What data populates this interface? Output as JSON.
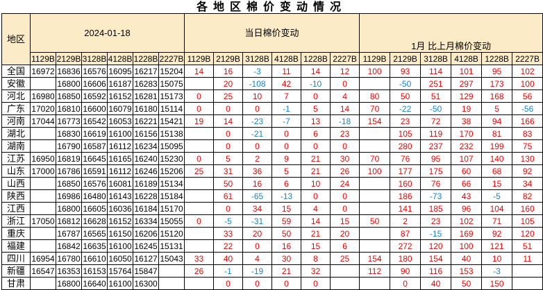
{
  "title": "各地区棉价变动情况",
  "colors": {
    "header_bg": "#fbebc6",
    "positive": "#f40000",
    "negative": "#1a7fd0",
    "border": "#000000"
  },
  "table": {
    "region_header": "地区",
    "groups": [
      {
        "label": "2024-01-18",
        "cols": [
          "1129B",
          "2129B",
          "3128B",
          "4128B",
          "1228B",
          "2227B"
        ]
      },
      {
        "label": "当日棉价变动",
        "cols": [
          "1129B",
          "2129B",
          "3128B",
          "4128B",
          "1228B",
          "2227B"
        ]
      },
      {
        "label": "1月 比上月棉价变动",
        "cols": [
          "1129B",
          "2129B",
          "3128B",
          "4128B",
          "1228B",
          "2227B"
        ]
      }
    ],
    "rows": [
      {
        "region": "全国",
        "prices": [
          "16972",
          "16836",
          "16576",
          "16095",
          "16217",
          "15204"
        ],
        "daily": [
          "14",
          "16",
          "-3",
          "11",
          "14",
          "12"
        ],
        "monthly": [
          "100",
          "93",
          "114",
          "101",
          "95",
          "102"
        ]
      },
      {
        "region": "安徽",
        "prices": [
          "",
          "16800",
          "16606",
          "16187",
          "16283",
          "15075"
        ],
        "daily": [
          "",
          "20",
          "-108",
          "42",
          "-10",
          "0"
        ],
        "monthly": [
          "",
          "-50",
          "251",
          "297",
          "173",
          "100"
        ]
      },
      {
        "region": "河北",
        "prices": [
          "16980",
          "16850",
          "16592",
          "16152",
          "16281",
          "15173"
        ],
        "daily": [
          "0",
          "25",
          "10",
          "7",
          "0",
          "4"
        ],
        "monthly": [
          "80",
          "50",
          "51",
          "129",
          "168",
          "56"
        ]
      },
      {
        "region": "广东",
        "prices": [
          "17020",
          "16810",
          "16600",
          "16079",
          "16180",
          "15114"
        ],
        "daily": [
          "0",
          "0",
          "0",
          "-1",
          "5",
          "14"
        ],
        "monthly": [
          "70",
          "-22",
          "-50",
          "19",
          "5",
          "-56"
        ]
      },
      {
        "region": "河南",
        "prices": [
          "17044",
          "16773",
          "16542",
          "16053",
          "16221",
          "15421"
        ],
        "daily": [
          "19",
          "14",
          "-23",
          "-7",
          "13",
          "-18"
        ],
        "monthly": [
          "154",
          "23",
          "72",
          "38",
          "94",
          "166"
        ]
      },
      {
        "region": "湖北",
        "prices": [
          "",
          "16830",
          "16619",
          "16100",
          "16156",
          "15138"
        ],
        "daily": [
          "",
          "0",
          "-21",
          "0",
          "6",
          "23"
        ],
        "monthly": [
          "",
          "105",
          "119",
          "170",
          "81",
          "83"
        ]
      },
      {
        "region": "湖南",
        "prices": [
          "",
          "16790",
          "16587",
          "16112",
          "16234",
          "15095"
        ],
        "daily": [
          "",
          "0",
          "0",
          "0",
          "0",
          "0"
        ],
        "monthly": [
          "",
          "280",
          "237",
          "232",
          "199",
          "75"
        ]
      },
      {
        "region": "江苏",
        "prices": [
          "16950",
          "16819",
          "16645",
          "16165",
          "16240",
          "15230"
        ],
        "daily": [
          "0",
          "5",
          "2",
          "9",
          "21",
          "30"
        ],
        "monthly": [
          "70",
          "76",
          "95",
          "107",
          "140",
          "130"
        ]
      },
      {
        "region": "山东",
        "prices": [
          "17000",
          "16786",
          "16591",
          "16112",
          "16246",
          "15206"
        ],
        "daily": [
          "25",
          "31",
          "36",
          "5",
          "21",
          "26"
        ],
        "monthly": [
          "100",
          "177",
          "175",
          "60",
          "68",
          "92"
        ]
      },
      {
        "region": "山西",
        "prices": [
          "",
          "16850",
          "16576",
          "16081",
          "16189",
          "15134"
        ],
        "daily": [
          "",
          "50",
          "16",
          "6",
          "10",
          "24"
        ],
        "monthly": [
          "",
          "160",
          "76",
          "66",
          "15",
          "34"
        ]
      },
      {
        "region": "陕西",
        "prices": [
          "",
          "16986",
          "16480",
          "16143",
          "16228",
          "15184"
        ],
        "daily": [
          "",
          "61",
          "-65",
          "-13",
          "0",
          "0"
        ],
        "monthly": [
          "",
          "186",
          "-73",
          "43",
          "-5",
          "82"
        ]
      },
      {
        "region": "江西",
        "prices": [
          "",
          "16800",
          "16605",
          "16036",
          "16184",
          "15170"
        ],
        "daily": [
          "",
          "0",
          "34",
          "15",
          "4",
          "0"
        ],
        "monthly": [
          "",
          "141",
          "185",
          "96",
          "104",
          "160"
        ]
      },
      {
        "region": "浙江",
        "prices": [
          "17050",
          "16812",
          "16628",
          "16152",
          "16334",
          "15055"
        ],
        "daily": [
          "0",
          "-5",
          "-31",
          "59",
          "14",
          "15"
        ],
        "monthly": [
          "50",
          "2",
          "23",
          "102",
          "71",
          "105"
        ]
      },
      {
        "region": "重庆",
        "prices": [
          "",
          "16787",
          "16565",
          "16150",
          "16206",
          "15120"
        ],
        "daily": [
          "",
          "33",
          "20",
          "50",
          "21",
          "20"
        ],
        "monthly": [
          "",
          "87",
          "-15",
          "169",
          "92",
          "120"
        ]
      },
      {
        "region": "福建",
        "prices": [
          "",
          "16842",
          "16635",
          "16100",
          "16245",
          "15131"
        ],
        "daily": [
          "",
          "22",
          "0",
          "16",
          "15",
          "6"
        ],
        "monthly": [
          "",
          "272",
          "120",
          "100",
          "121",
          "51"
        ]
      },
      {
        "region": "四川",
        "prices": [
          "16954",
          "16780",
          "16610",
          "16050",
          "16127",
          "15043"
        ],
        "daily": [
          "33",
          "40",
          "4",
          "30",
          "8",
          "25"
        ],
        "monthly": [
          "154",
          "180",
          "154",
          "40",
          "10",
          "11"
        ]
      },
      {
        "region": "新疆",
        "prices": [
          "16547",
          "16353",
          "16153",
          "15764",
          "15847",
          ""
        ],
        "daily": [
          "26",
          "-1",
          "-19",
          "21",
          "32",
          ""
        ],
        "monthly": [
          "112",
          "90",
          "116",
          "153",
          "-3",
          ""
        ]
      },
      {
        "region": "甘肃",
        "prices": [
          "",
          "16800",
          "16640",
          "16100",
          "16300",
          ""
        ],
        "daily": [
          "",
          "0",
          "0",
          "0",
          "0",
          ""
        ],
        "monthly": [
          "",
          "0",
          "40",
          "50",
          "150",
          ""
        ]
      }
    ]
  }
}
